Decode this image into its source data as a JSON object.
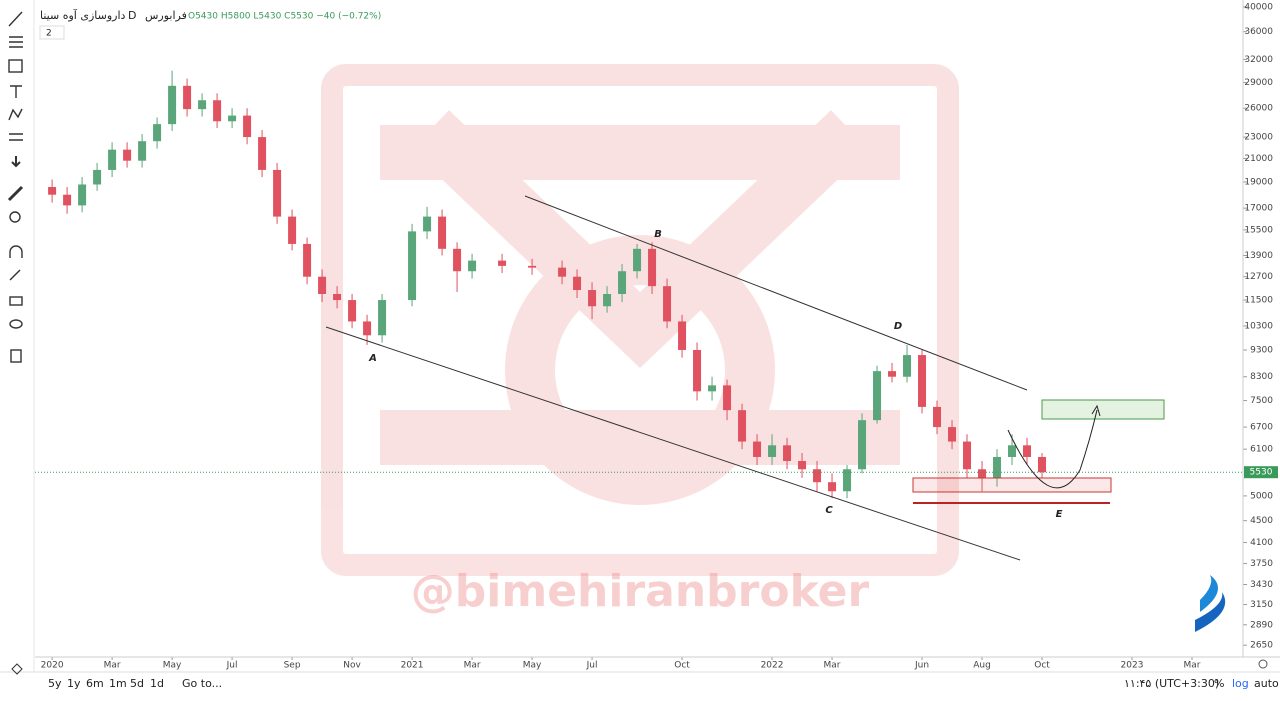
{
  "header": {
    "symbol": "داروسازی آوه سینا",
    "interval": "D",
    "exchange": "فرابورس",
    "ohlc": "O5430 H5800 L5430 C5530 −40 (−0.72%)",
    "pane_count": "2"
  },
  "toolbar": {
    "ranges": [
      "5y",
      "1y",
      "6m",
      "1m",
      "5d",
      "1d"
    ],
    "goto": "Go to...",
    "clock": "۱۱:۴۵ (UTC+3:30)",
    "percent": "%",
    "log": "log",
    "auto": "auto"
  },
  "watermark": "@bimehiranbroker",
  "chart_data": {
    "type": "candlestick",
    "log_scale": true,
    "up_color": "#5aa57a",
    "down_color": "#e0525f",
    "last_price": 5530,
    "ylim": [
      2520,
      41200
    ],
    "yticks": [
      40000,
      36000,
      32000,
      29000,
      26000,
      23000,
      21000,
      19000,
      17000,
      15500,
      13900,
      12700,
      11500,
      10300,
      9300,
      8300,
      7500,
      6700,
      6100,
      5000,
      4500,
      4100,
      3750,
      3430,
      3150,
      2890,
      2650
    ],
    "xlim": [
      -0.57,
      39.7
    ],
    "xticks": [
      {
        "value": 0,
        "label": "2020"
      },
      {
        "value": 2,
        "label": "Mar"
      },
      {
        "value": 4,
        "label": "May"
      },
      {
        "value": 6,
        "label": "Jul"
      },
      {
        "value": 8,
        "label": "Sep"
      },
      {
        "value": 10,
        "label": "Nov"
      },
      {
        "value": 12,
        "label": "2021"
      },
      {
        "value": 14,
        "label": "Mar"
      },
      {
        "value": 16,
        "label": "May"
      },
      {
        "value": 18,
        "label": "Jul"
      },
      {
        "value": 21,
        "label": "Oct"
      },
      {
        "value": 24,
        "label": "2022"
      },
      {
        "value": 26,
        "label": "Mar"
      },
      {
        "value": 29,
        "label": "Jun"
      },
      {
        "value": 31,
        "label": "Aug"
      },
      {
        "value": 33,
        "label": "Oct"
      },
      {
        "value": 36,
        "label": "2023"
      },
      {
        "value": 38,
        "label": "Mar"
      }
    ],
    "x": [
      0,
      0.5,
      1,
      1.5,
      2,
      2.5,
      3,
      3.5,
      4,
      4.5,
      5,
      5.5,
      6,
      6.5,
      7,
      7.5,
      8,
      8.5,
      9,
      9.5,
      10,
      10.5,
      11,
      12,
      12.5,
      13,
      13.5,
      14,
      15,
      16,
      17,
      17.5,
      18,
      18.5,
      19,
      19.5,
      20,
      20.5,
      21,
      21.5,
      22,
      22.5,
      23,
      23.5,
      24,
      24.5,
      25,
      25.5,
      26,
      26.5,
      27,
      27.5,
      28,
      28.5,
      29,
      29.5,
      30,
      30.5,
      31,
      31.5,
      32,
      32.5,
      33
    ],
    "open": [
      18600,
      18000,
      17200,
      18800,
      20000,
      21800,
      20800,
      22600,
      24300,
      28600,
      25900,
      26900,
      24600,
      25200,
      23000,
      20000,
      16400,
      14600,
      12700,
      11800,
      11500,
      10500,
      9900,
      11500,
      15400,
      16400,
      14300,
      13000,
      13600,
      13300,
      13200,
      12700,
      12000,
      11200,
      11800,
      13000,
      14300,
      12200,
      10500,
      9300,
      7800,
      8000,
      7200,
      6300,
      5900,
      6200,
      5800,
      5600,
      5300,
      5100,
      5600,
      6900,
      8500,
      8300,
      9100,
      7300,
      6700,
      6300,
      5600,
      5400,
      5900,
      6200,
      5900
    ],
    "high": [
      19200,
      18600,
      19400,
      20600,
      22500,
      22500,
      23300,
      25000,
      30500,
      29500,
      27700,
      27700,
      26000,
      26000,
      23700,
      20600,
      16900,
      15000,
      13100,
      12200,
      11800,
      10800,
      11800,
      15900,
      17100,
      16900,
      14700,
      14000,
      14000,
      13700,
      13600,
      13100,
      12400,
      12200,
      13400,
      14600,
      14700,
      12600,
      10800,
      9600,
      8300,
      8200,
      7400,
      6500,
      6500,
      6400,
      6000,
      5800,
      5500,
      5700,
      7100,
      8700,
      8800,
      9500,
      9300,
      7500,
      6900,
      6500,
      5800,
      6100,
      6500,
      6400,
      6000
    ],
    "low": [
      17400,
      16600,
      16700,
      18300,
      19400,
      20200,
      20200,
      21900,
      23600,
      25100,
      25100,
      23900,
      23900,
      22300,
      19400,
      15900,
      14200,
      12300,
      11400,
      11100,
      10200,
      9500,
      9600,
      11200,
      14900,
      13900,
      11900,
      12600,
      12900,
      12800,
      12300,
      11600,
      10600,
      10900,
      11400,
      12600,
      11800,
      10200,
      9000,
      7500,
      7500,
      6900,
      6100,
      5700,
      5700,
      5600,
      5400,
      5100,
      4950,
      4950,
      5500,
      6800,
      8100,
      8100,
      7100,
      6500,
      6100,
      5400,
      5100,
      5200,
      5700,
      5700,
      5400
    ],
    "close": [
      18000,
      17200,
      18800,
      20000,
      21800,
      20800,
      22600,
      24300,
      28600,
      25900,
      26900,
      24600,
      25200,
      23000,
      20000,
      16400,
      14600,
      12700,
      11800,
      11500,
      10500,
      9900,
      11500,
      15400,
      16400,
      14300,
      13000,
      13600,
      13300,
      13200,
      12700,
      12000,
      11200,
      11800,
      13000,
      14300,
      12200,
      10500,
      9300,
      7800,
      8000,
      7200,
      6300,
      5900,
      6200,
      5800,
      5600,
      5300,
      5100,
      5600,
      6900,
      8500,
      8300,
      9100,
      7300,
      6700,
      6300,
      5600,
      5400,
      5900,
      6200,
      5900,
      5530
    ]
  },
  "annotations": [
    "A",
    "B",
    "C",
    "D",
    "E"
  ]
}
